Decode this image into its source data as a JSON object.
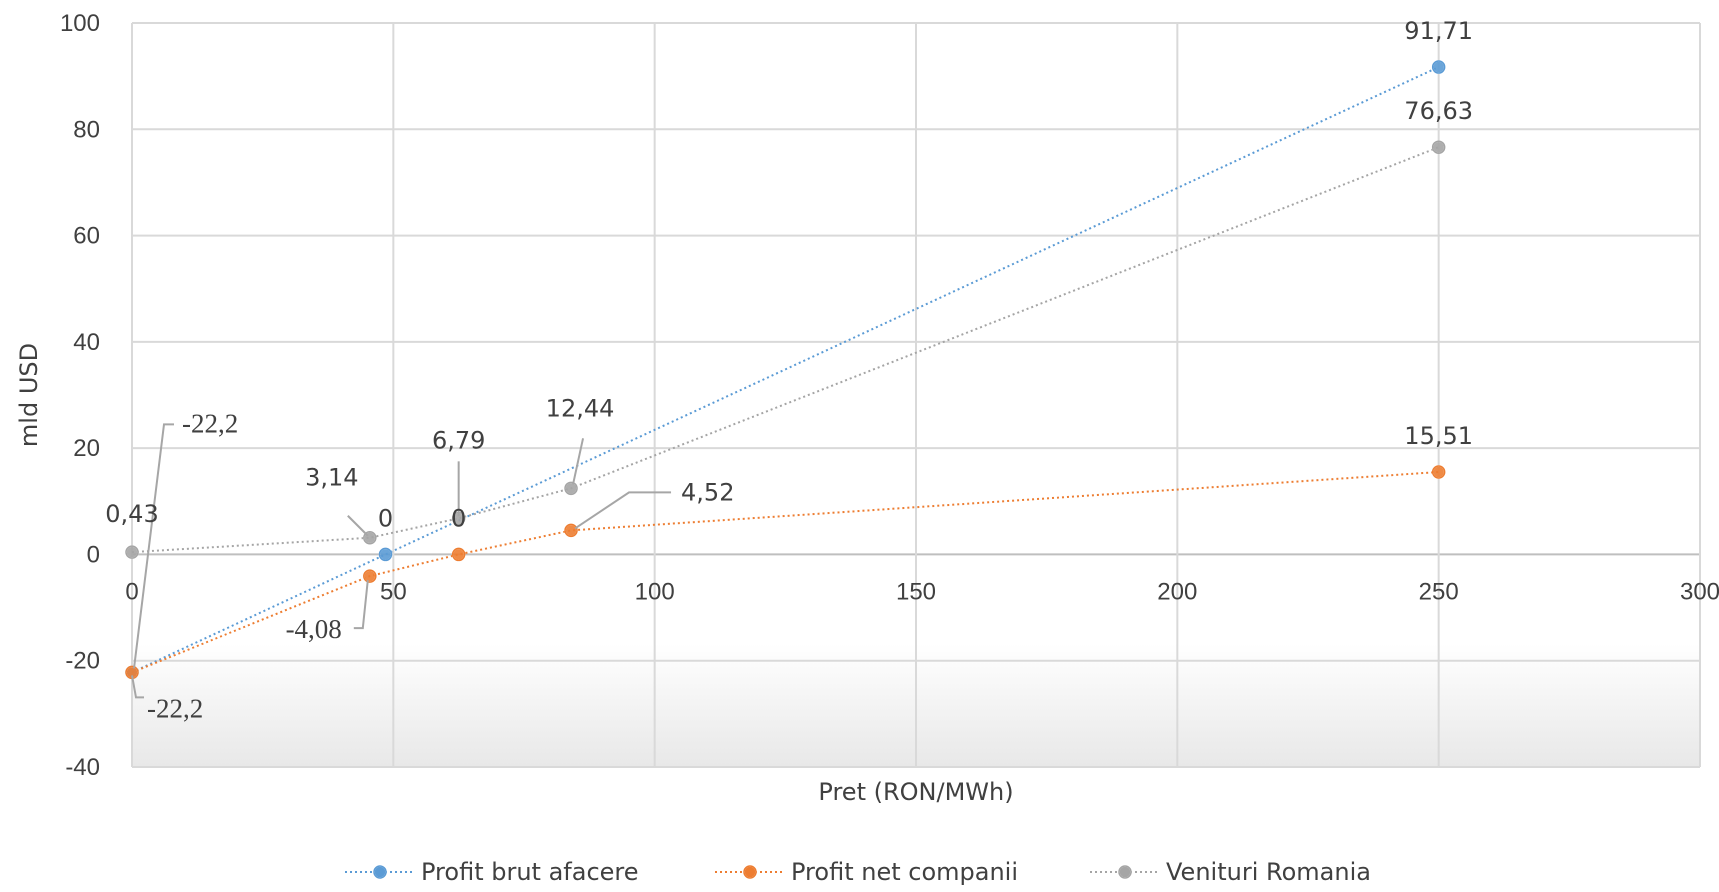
{
  "chart_data": {
    "type": "scatter",
    "xlabel": "Pret (RON/MWh)",
    "ylabel": "mld USD",
    "xlim": [
      0,
      300
    ],
    "ylim": [
      -40,
      100
    ],
    "x_ticks": [
      0,
      50,
      100,
      150,
      200,
      250,
      300
    ],
    "y_ticks": [
      -40,
      -20,
      0,
      20,
      40,
      60,
      80,
      100
    ],
    "grid": true,
    "legend_position": "bottom",
    "series": [
      {
        "name": "Profit brut afacere",
        "color": "#5b9bd5",
        "line_style": "dotted",
        "x": [
          0,
          48.5,
          250
        ],
        "y": [
          -22.2,
          0,
          91.71
        ],
        "labels": [
          "-22,2",
          "0",
          "91,71"
        ]
      },
      {
        "name": "Profit net companii",
        "color": "#ed7d31",
        "line_style": "dotted",
        "x": [
          0,
          45.5,
          62.5,
          84,
          250
        ],
        "y": [
          -22.2,
          -4.08,
          0,
          4.52,
          15.51
        ],
        "labels": [
          "",
          "-4,08",
          "0",
          "4,52",
          "15,51"
        ]
      },
      {
        "name": "Venituri Romania",
        "color": "#a5a5a5",
        "line_style": "dotted",
        "x": [
          0,
          45.5,
          62.5,
          84,
          250
        ],
        "y": [
          0.43,
          3.14,
          6.79,
          12.44,
          76.63
        ],
        "labels": [
          "0,43",
          "3,14",
          "6,79",
          "12,44",
          "76,63"
        ]
      }
    ]
  }
}
